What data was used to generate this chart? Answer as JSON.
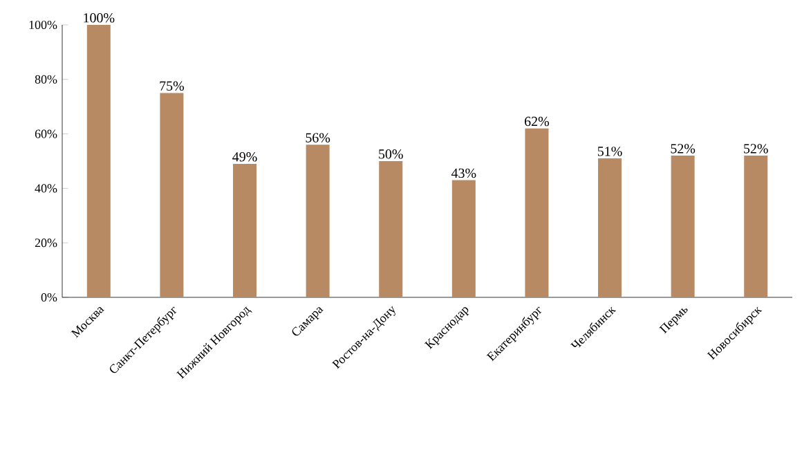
{
  "chart_data": {
    "type": "bar",
    "categories": [
      "Москва",
      "Санкт-Петербург",
      "Нижний Новгород",
      "Самара",
      "Ростов-на-Дону",
      "Краснодар",
      "Екатеринбург",
      "Челябинск",
      "Пермь",
      "Новосибирск"
    ],
    "values": [
      100,
      75,
      49,
      56,
      50,
      43,
      62,
      51,
      52,
      52
    ],
    "value_labels": [
      "100%",
      "75%",
      "49%",
      "56%",
      "50%",
      "43%",
      "62%",
      "51%",
      "52%",
      "52%"
    ],
    "color": "#b88a64",
    "ylim": [
      0,
      100
    ],
    "yticks": [
      {
        "value": 0,
        "label": "0%"
      },
      {
        "value": 20,
        "label": "20%"
      },
      {
        "value": 40,
        "label": "40%"
      },
      {
        "value": 60,
        "label": "60%"
      },
      {
        "value": 80,
        "label": "80%"
      },
      {
        "value": 100,
        "label": "100%"
      }
    ],
    "grid": false
  }
}
